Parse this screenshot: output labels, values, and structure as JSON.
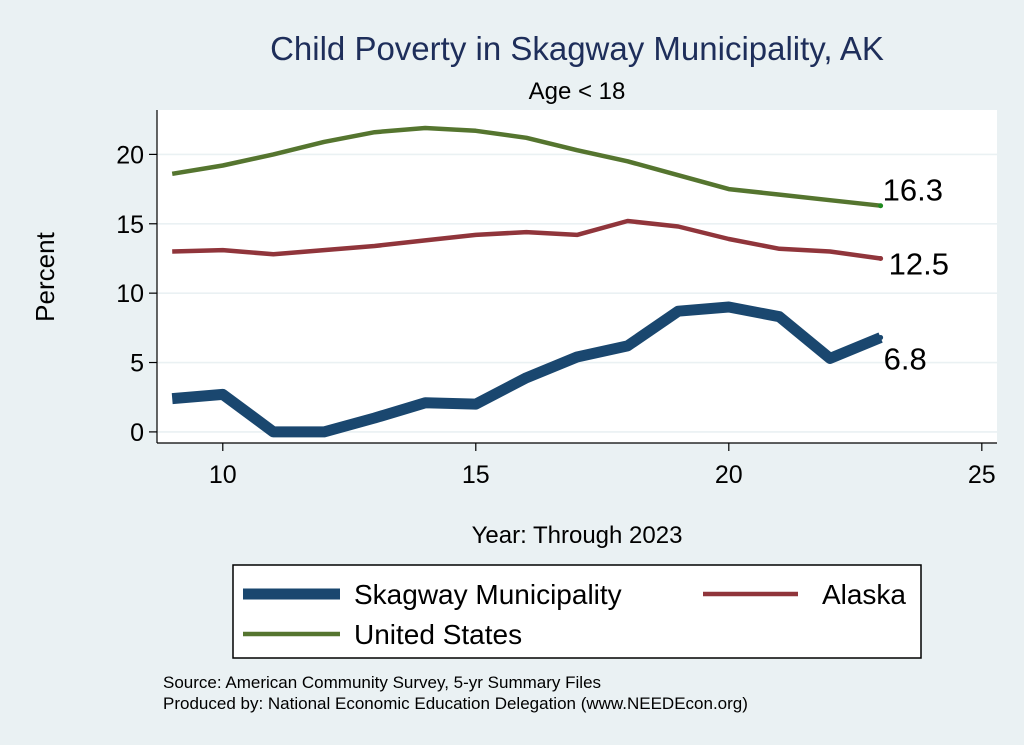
{
  "chart_data": {
    "type": "line",
    "title": "Child Poverty in Skagway Municipality, AK",
    "subtitle": "Age < 18",
    "xlabel": "Year: Through 2023",
    "ylabel": "Percent",
    "xlim": [
      8.7,
      25.3
    ],
    "ylim": [
      -0.8,
      23.2
    ],
    "xticks": [
      10,
      15,
      20,
      25
    ],
    "yticks": [
      0,
      5,
      10,
      15,
      20
    ],
    "grid": true,
    "legend_position": "bottom",
    "series": [
      {
        "name": "Skagway Municipality",
        "color": "#1a476f",
        "x": [
          9,
          10,
          11,
          12,
          13,
          14,
          15,
          16,
          17,
          18,
          19,
          20,
          21,
          22,
          23
        ],
        "values": [
          2.4,
          2.7,
          0.0,
          0.0,
          1.0,
          2.1,
          2.0,
          3.9,
          5.4,
          6.2,
          8.7,
          9.0,
          8.3,
          5.3,
          6.8
        ],
        "end_label": "6.8"
      },
      {
        "name": "Alaska",
        "color": "#90353b",
        "x": [
          9,
          10,
          11,
          12,
          13,
          14,
          15,
          16,
          17,
          18,
          19,
          20,
          21,
          22,
          23
        ],
        "values": [
          13.0,
          13.1,
          12.8,
          13.1,
          13.4,
          13.8,
          14.2,
          14.4,
          14.2,
          15.2,
          14.8,
          13.9,
          13.2,
          13.0,
          12.5
        ],
        "end_label": "12.5"
      },
      {
        "name": "United States",
        "color": "#55752f",
        "x": [
          9,
          10,
          11,
          12,
          13,
          14,
          15,
          16,
          17,
          18,
          19,
          20,
          21,
          22,
          23
        ],
        "values": [
          18.6,
          19.2,
          20.0,
          20.9,
          21.6,
          21.9,
          21.7,
          21.2,
          20.3,
          19.5,
          18.5,
          17.5,
          17.1,
          16.7,
          16.3
        ],
        "end_label": "16.3"
      }
    ]
  },
  "notes": {
    "source": "Source: American Community Survey, 5-yr Summary Files",
    "producer": "Produced by: National Economic Education Delegation (www.NEEDEcon.org)"
  }
}
